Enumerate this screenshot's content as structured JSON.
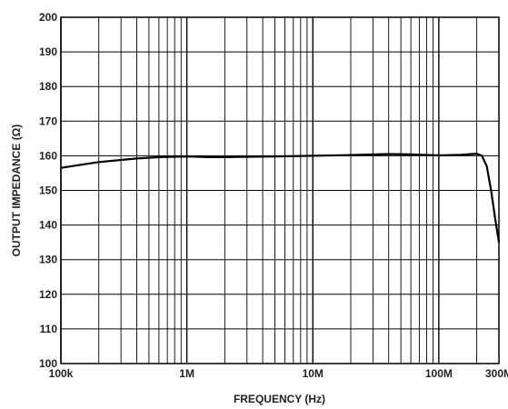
{
  "chart_data": {
    "type": "line",
    "title": "",
    "xlabel": "FREQUENCY (Hz)",
    "ylabel": "OUTPUT IMPEDANCE (Ω)",
    "x_scale": "log",
    "xlim": [
      100000,
      300000000
    ],
    "ylim": [
      100,
      200
    ],
    "grid": true,
    "x_ticks": [
      {
        "value": 100000,
        "label": "100k"
      },
      {
        "value": 1000000,
        "label": "1M"
      },
      {
        "value": 10000000,
        "label": "10M"
      },
      {
        "value": 100000000,
        "label": "100M"
      },
      {
        "value": 300000000,
        "label": "300M"
      }
    ],
    "y_ticks": [
      {
        "value": 100,
        "label": "100"
      },
      {
        "value": 110,
        "label": "110"
      },
      {
        "value": 120,
        "label": "120"
      },
      {
        "value": 130,
        "label": "130"
      },
      {
        "value": 140,
        "label": "140"
      },
      {
        "value": 150,
        "label": "150"
      },
      {
        "value": 160,
        "label": "160"
      },
      {
        "value": 170,
        "label": "170"
      },
      {
        "value": 180,
        "label": "180"
      },
      {
        "value": 190,
        "label": "190"
      },
      {
        "value": 200,
        "label": "200"
      }
    ],
    "series": [
      {
        "color": "#000000",
        "points": [
          [
            100000,
            156.5
          ],
          [
            150000,
            157.5
          ],
          [
            200000,
            158.2
          ],
          [
            300000,
            158.8
          ],
          [
            400000,
            159.2
          ],
          [
            600000,
            159.6
          ],
          [
            1000000,
            159.8
          ],
          [
            1500000,
            159.6
          ],
          [
            2000000,
            159.6
          ],
          [
            5000000,
            159.8
          ],
          [
            10000000,
            160.0
          ],
          [
            20000000,
            160.2
          ],
          [
            40000000,
            160.5
          ],
          [
            60000000,
            160.4
          ],
          [
            100000000,
            160.1
          ],
          [
            150000000,
            160.3
          ],
          [
            200000000,
            160.6
          ],
          [
            220000000,
            160.0
          ],
          [
            240000000,
            157.0
          ],
          [
            260000000,
            150.0
          ],
          [
            280000000,
            142.0
          ],
          [
            300000000,
            135.0
          ]
        ]
      }
    ]
  }
}
